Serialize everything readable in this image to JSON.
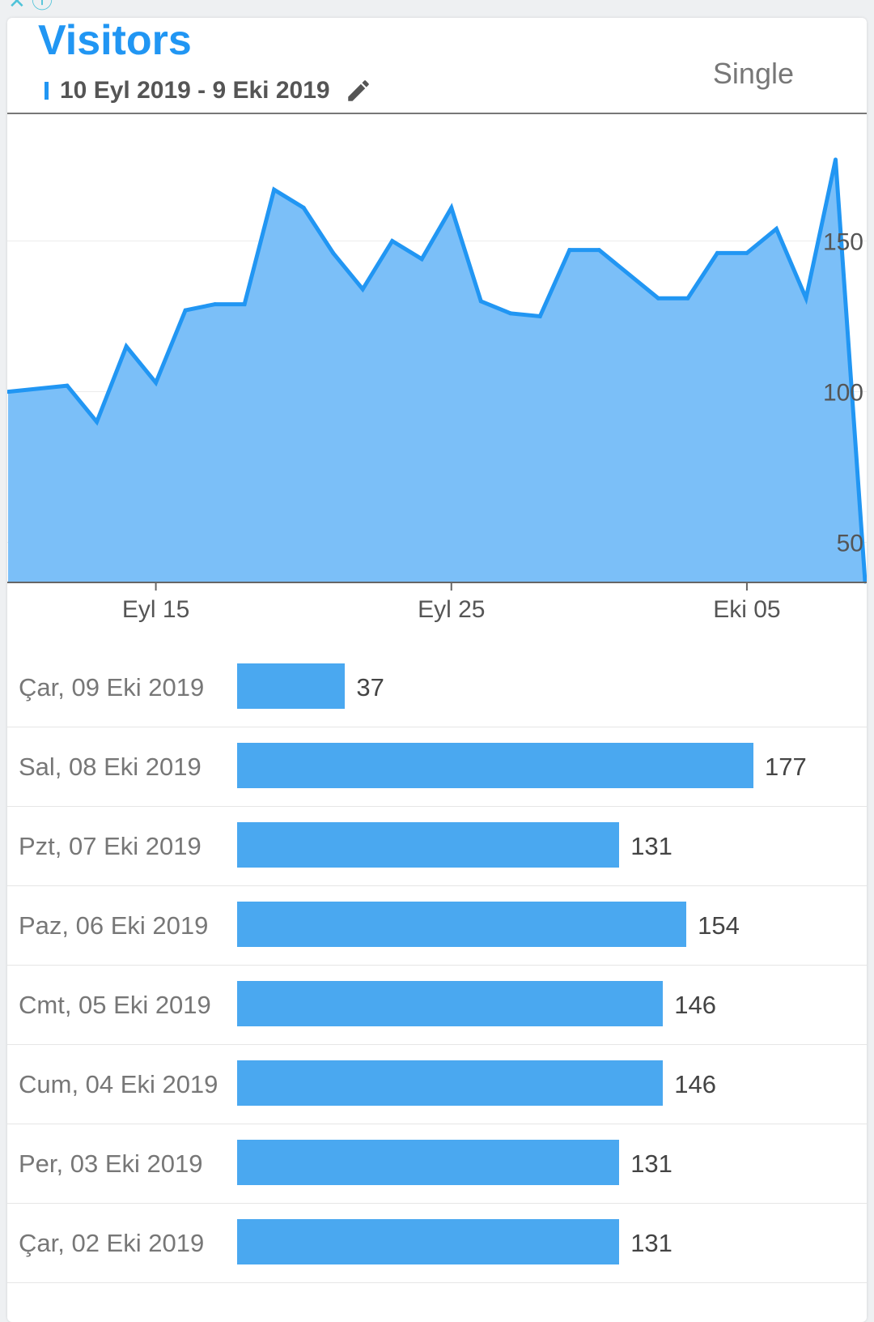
{
  "status_icons": "✕ ⓘ",
  "card": {
    "title": "Visitors",
    "date_range": "10 Eyl 2019 - 9 Eki 2019",
    "mode": "Single",
    "edit_icon": "pencil-icon"
  },
  "colors": {
    "accent": "#2196f3",
    "area_fill": "#7bbff8",
    "bar": "#4aa8f0"
  },
  "chart_data": {
    "type": "area",
    "x": [
      "2019-09-10",
      "2019-09-12",
      "2019-09-13",
      "2019-09-14",
      "2019-09-15",
      "2019-09-16",
      "2019-09-17",
      "2019-09-18",
      "2019-09-19",
      "2019-09-20",
      "2019-09-21",
      "2019-09-22",
      "2019-09-23",
      "2019-09-24",
      "2019-09-25",
      "2019-09-26",
      "2019-09-27",
      "2019-09-28",
      "2019-09-29",
      "2019-09-30",
      "2019-10-02",
      "2019-10-03",
      "2019-10-04",
      "2019-10-05",
      "2019-10-06",
      "2019-10-07",
      "2019-10-08",
      "2019-10-09"
    ],
    "values": [
      100,
      102,
      90,
      115,
      103,
      127,
      129,
      129,
      167,
      161,
      146,
      134,
      150,
      144,
      161,
      130,
      126,
      125,
      147,
      147,
      131,
      131,
      146,
      146,
      154,
      131,
      177,
      37
    ],
    "x_ticks": [
      "Eyl 15",
      "Eyl 25",
      "Eki 05"
    ],
    "y_ticks": [
      50,
      100,
      150
    ],
    "ylim": [
      37,
      177
    ],
    "grid": true
  },
  "daily": [
    {
      "date": "Çar, 09 Eki 2019",
      "value": 37
    },
    {
      "date": "Sal, 08 Eki 2019",
      "value": 177
    },
    {
      "date": "Pzt, 07 Eki 2019",
      "value": 131
    },
    {
      "date": "Paz, 06 Eki 2019",
      "value": 154
    },
    {
      "date": "Cmt, 05 Eki 2019",
      "value": 146
    },
    {
      "date": "Cum, 04 Eki 2019",
      "value": 146
    },
    {
      "date": "Per, 03 Eki 2019",
      "value": 131
    },
    {
      "date": "Çar, 02 Eki 2019",
      "value": 131
    }
  ]
}
